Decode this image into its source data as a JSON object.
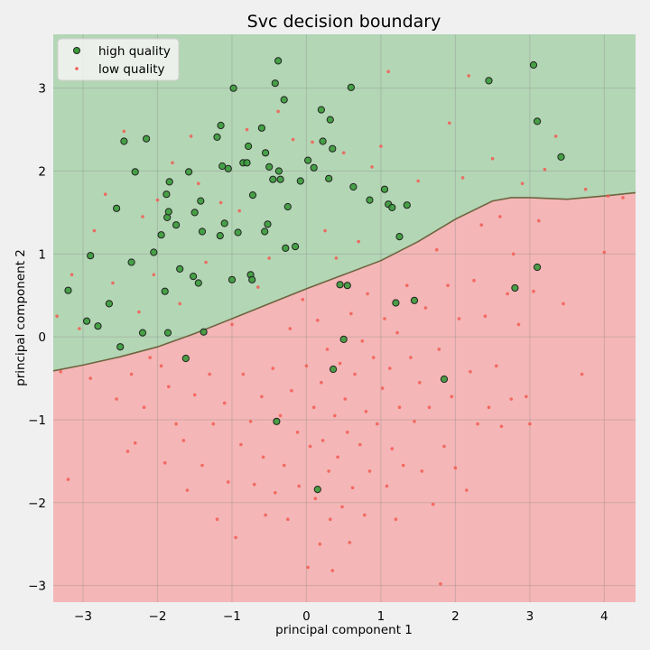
{
  "chart_data": {
    "type": "scatter",
    "title": "Svc decision boundary",
    "xlabel": "principal component 1",
    "ylabel": "principal component 2",
    "xlim": [
      -3.4,
      4.42
    ],
    "ylim": [
      -3.2,
      3.65
    ],
    "xticks": [
      -3,
      -2,
      -1,
      0,
      1,
      2,
      3,
      4
    ],
    "yticks": [
      -3,
      -2,
      -1,
      0,
      1,
      2,
      3
    ],
    "grid": true,
    "legend_position": "top-left",
    "region_colors": {
      "high": "#b3d6b5",
      "low": "#f4b6b6"
    },
    "boundary_color": "#6e6440",
    "boundary": [
      [
        -3.4,
        -0.41
      ],
      [
        -3.0,
        -0.34
      ],
      [
        -2.5,
        -0.24
      ],
      [
        -2.0,
        -0.12
      ],
      [
        -1.5,
        0.04
      ],
      [
        -1.0,
        0.22
      ],
      [
        -0.5,
        0.4
      ],
      [
        0.0,
        0.58
      ],
      [
        0.5,
        0.75
      ],
      [
        1.0,
        0.92
      ],
      [
        1.5,
        1.15
      ],
      [
        2.0,
        1.42
      ],
      [
        2.5,
        1.64
      ],
      [
        2.75,
        1.68
      ],
      [
        3.0,
        1.68
      ],
      [
        3.5,
        1.66
      ],
      [
        4.0,
        1.7
      ],
      [
        4.42,
        1.74
      ]
    ],
    "series": [
      {
        "name": "high quality",
        "color": "#3a9a3a",
        "edge": "#222222",
        "points": [
          [
            -3.2,
            0.56
          ],
          [
            -2.95,
            0.19
          ],
          [
            -2.9,
            0.98
          ],
          [
            -2.8,
            0.13
          ],
          [
            -2.65,
            0.4
          ],
          [
            -2.55,
            1.55
          ],
          [
            -2.5,
            -0.12
          ],
          [
            -2.45,
            2.36
          ],
          [
            -2.35,
            0.9
          ],
          [
            -2.3,
            1.99
          ],
          [
            -2.2,
            0.05
          ],
          [
            -2.15,
            2.39
          ],
          [
            -2.05,
            1.02
          ],
          [
            -1.95,
            1.23
          ],
          [
            -1.9,
            0.55
          ],
          [
            -1.88,
            1.72
          ],
          [
            -1.87,
            1.44
          ],
          [
            -1.86,
            0.05
          ],
          [
            -1.85,
            1.51
          ],
          [
            -1.84,
            1.87
          ],
          [
            -1.75,
            1.35
          ],
          [
            -1.7,
            0.82
          ],
          [
            -1.62,
            -0.26
          ],
          [
            -1.58,
            1.99
          ],
          [
            -1.52,
            0.73
          ],
          [
            -1.5,
            1.5
          ],
          [
            -1.45,
            0.65
          ],
          [
            -1.42,
            1.64
          ],
          [
            -1.4,
            1.27
          ],
          [
            -1.38,
            0.06
          ],
          [
            -1.2,
            2.41
          ],
          [
            -1.16,
            1.22
          ],
          [
            -1.15,
            2.55
          ],
          [
            -1.13,
            2.06
          ],
          [
            -1.1,
            1.37
          ],
          [
            -1.05,
            2.03
          ],
          [
            -1.0,
            0.69
          ],
          [
            -0.98,
            3.0
          ],
          [
            -0.92,
            1.26
          ],
          [
            -0.85,
            2.1
          ],
          [
            -0.8,
            2.1
          ],
          [
            -0.78,
            2.3
          ],
          [
            -0.75,
            0.75
          ],
          [
            -0.73,
            0.69
          ],
          [
            -0.72,
            1.71
          ],
          [
            -0.6,
            2.52
          ],
          [
            -0.56,
            1.27
          ],
          [
            -0.55,
            2.22
          ],
          [
            -0.52,
            1.36
          ],
          [
            -0.5,
            2.05
          ],
          [
            -0.45,
            1.9
          ],
          [
            -0.42,
            3.06
          ],
          [
            -0.4,
            -1.02
          ],
          [
            -0.38,
            3.33
          ],
          [
            -0.37,
            2.0
          ],
          [
            -0.35,
            1.9
          ],
          [
            -0.3,
            2.86
          ],
          [
            -0.28,
            1.07
          ],
          [
            -0.25,
            1.57
          ],
          [
            -0.15,
            1.09
          ],
          [
            -0.08,
            1.88
          ],
          [
            0.02,
            2.13
          ],
          [
            0.1,
            2.04
          ],
          [
            0.15,
            -1.84
          ],
          [
            0.2,
            2.74
          ],
          [
            0.22,
            2.36
          ],
          [
            0.3,
            1.91
          ],
          [
            0.32,
            2.62
          ],
          [
            0.35,
            2.27
          ],
          [
            0.36,
            -0.39
          ],
          [
            0.45,
            0.63
          ],
          [
            0.5,
            -0.03
          ],
          [
            0.55,
            0.62
          ],
          [
            0.6,
            3.01
          ],
          [
            0.63,
            1.81
          ],
          [
            0.85,
            1.65
          ],
          [
            1.05,
            1.78
          ],
          [
            1.1,
            1.6
          ],
          [
            1.15,
            1.56
          ],
          [
            1.2,
            0.41
          ],
          [
            1.25,
            1.21
          ],
          [
            1.35,
            1.59
          ],
          [
            1.45,
            0.44
          ],
          [
            1.85,
            -0.51
          ],
          [
            2.45,
            3.09
          ],
          [
            2.8,
            0.59
          ],
          [
            3.05,
            3.28
          ],
          [
            3.1,
            2.6
          ],
          [
            3.1,
            0.84
          ],
          [
            3.42,
            2.17
          ]
        ]
      },
      {
        "name": "low quality",
        "color": "#f25c54",
        "edge": "#f25c54",
        "points": [
          [
            -3.35,
            0.25
          ],
          [
            -3.3,
            -0.42
          ],
          [
            -3.2,
            -1.72
          ],
          [
            -3.15,
            0.75
          ],
          [
            -3.05,
            0.1
          ],
          [
            -2.9,
            -0.5
          ],
          [
            -2.85,
            1.28
          ],
          [
            -2.7,
            1.72
          ],
          [
            -2.6,
            0.65
          ],
          [
            -2.55,
            -0.75
          ],
          [
            -2.45,
            2.48
          ],
          [
            -2.4,
            -1.38
          ],
          [
            -2.35,
            -0.45
          ],
          [
            -2.3,
            -1.28
          ],
          [
            -2.25,
            0.3
          ],
          [
            -2.2,
            1.45
          ],
          [
            -2.18,
            -0.85
          ],
          [
            -2.1,
            -0.25
          ],
          [
            -2.05,
            0.75
          ],
          [
            -2.0,
            1.65
          ],
          [
            -1.95,
            -0.35
          ],
          [
            -1.9,
            -1.52
          ],
          [
            -1.85,
            -0.6
          ],
          [
            -1.8,
            2.1
          ],
          [
            -1.75,
            -1.05
          ],
          [
            -1.7,
            0.4
          ],
          [
            -1.65,
            -1.25
          ],
          [
            -1.6,
            -1.85
          ],
          [
            -1.55,
            2.42
          ],
          [
            -1.5,
            -0.7
          ],
          [
            -1.45,
            1.85
          ],
          [
            -1.4,
            -1.55
          ],
          [
            -1.35,
            0.9
          ],
          [
            -1.3,
            -0.45
          ],
          [
            -1.25,
            -1.05
          ],
          [
            -1.2,
            -2.2
          ],
          [
            -1.15,
            1.62
          ],
          [
            -1.1,
            -0.8
          ],
          [
            -1.05,
            -1.75
          ],
          [
            -1.0,
            0.15
          ],
          [
            -0.95,
            -2.42
          ],
          [
            -0.9,
            1.52
          ],
          [
            -0.88,
            -1.3
          ],
          [
            -0.85,
            -0.45
          ],
          [
            -0.8,
            2.5
          ],
          [
            -0.75,
            -1.02
          ],
          [
            -0.7,
            -1.78
          ],
          [
            -0.65,
            0.6
          ],
          [
            -0.6,
            -0.72
          ],
          [
            -0.58,
            -1.45
          ],
          [
            -0.55,
            -2.15
          ],
          [
            -0.5,
            0.95
          ],
          [
            -0.45,
            -0.38
          ],
          [
            -0.42,
            -1.88
          ],
          [
            -0.38,
            2.72
          ],
          [
            -0.35,
            -0.95
          ],
          [
            -0.3,
            -1.55
          ],
          [
            -0.25,
            -2.2
          ],
          [
            -0.22,
            0.1
          ],
          [
            -0.2,
            -0.65
          ],
          [
            -0.18,
            2.38
          ],
          [
            -0.12,
            -1.15
          ],
          [
            -0.1,
            -1.8
          ],
          [
            -0.05,
            0.45
          ],
          [
            0.0,
            -0.35
          ],
          [
            0.02,
            -2.78
          ],
          [
            0.05,
            -1.32
          ],
          [
            0.08,
            2.35
          ],
          [
            0.1,
            -0.85
          ],
          [
            0.12,
            -1.95
          ],
          [
            0.15,
            0.2
          ],
          [
            0.18,
            -2.5
          ],
          [
            0.2,
            -0.55
          ],
          [
            0.22,
            -1.25
          ],
          [
            0.25,
            1.28
          ],
          [
            0.28,
            -0.15
          ],
          [
            0.3,
            -1.62
          ],
          [
            0.32,
            -2.2
          ],
          [
            0.35,
            -2.82
          ],
          [
            0.38,
            -0.95
          ],
          [
            0.4,
            0.95
          ],
          [
            0.42,
            -1.45
          ],
          [
            0.45,
            -0.32
          ],
          [
            0.48,
            -2.05
          ],
          [
            0.5,
            2.22
          ],
          [
            0.52,
            -0.75
          ],
          [
            0.55,
            -1.15
          ],
          [
            0.58,
            -2.48
          ],
          [
            0.6,
            0.28
          ],
          [
            0.62,
            -1.82
          ],
          [
            0.65,
            -0.45
          ],
          [
            0.7,
            1.15
          ],
          [
            0.72,
            -1.3
          ],
          [
            0.75,
            -0.05
          ],
          [
            0.78,
            -2.15
          ],
          [
            0.8,
            -0.9
          ],
          [
            0.82,
            0.52
          ],
          [
            0.85,
            -1.62
          ],
          [
            0.88,
            2.05
          ],
          [
            0.9,
            -0.25
          ],
          [
            0.95,
            -1.05
          ],
          [
            1.0,
            2.3
          ],
          [
            1.02,
            -0.62
          ],
          [
            1.05,
            0.22
          ],
          [
            1.08,
            -1.8
          ],
          [
            1.1,
            3.2
          ],
          [
            1.12,
            -0.38
          ],
          [
            1.15,
            -1.35
          ],
          [
            1.2,
            -2.2
          ],
          [
            1.22,
            0.05
          ],
          [
            1.25,
            -0.85
          ],
          [
            1.3,
            -1.55
          ],
          [
            1.35,
            0.62
          ],
          [
            1.4,
            -0.25
          ],
          [
            1.45,
            -1.02
          ],
          [
            1.5,
            1.88
          ],
          [
            1.52,
            -0.55
          ],
          [
            1.55,
            -1.62
          ],
          [
            1.6,
            0.35
          ],
          [
            1.65,
            -0.85
          ],
          [
            1.7,
            -2.02
          ],
          [
            1.75,
            1.05
          ],
          [
            1.78,
            -0.15
          ],
          [
            1.8,
            -2.98
          ],
          [
            1.85,
            -1.32
          ],
          [
            1.9,
            0.62
          ],
          [
            1.92,
            2.58
          ],
          [
            1.95,
            -0.72
          ],
          [
            2.0,
            -1.58
          ],
          [
            2.05,
            0.22
          ],
          [
            2.1,
            1.92
          ],
          [
            2.15,
            -1.85
          ],
          [
            2.18,
            3.15
          ],
          [
            2.2,
            -0.42
          ],
          [
            2.25,
            0.68
          ],
          [
            2.3,
            -1.05
          ],
          [
            2.35,
            1.35
          ],
          [
            2.4,
            0.25
          ],
          [
            2.45,
            -0.85
          ],
          [
            2.5,
            2.15
          ],
          [
            2.55,
            -0.35
          ],
          [
            2.6,
            1.45
          ],
          [
            2.62,
            -1.08
          ],
          [
            2.7,
            0.52
          ],
          [
            2.75,
            -0.75
          ],
          [
            2.78,
            1.0
          ],
          [
            2.85,
            0.15
          ],
          [
            2.9,
            1.85
          ],
          [
            2.95,
            -0.72
          ],
          [
            3.0,
            -1.05
          ],
          [
            3.05,
            0.55
          ],
          [
            3.12,
            1.4
          ],
          [
            3.2,
            2.02
          ],
          [
            3.35,
            2.42
          ],
          [
            3.45,
            0.4
          ],
          [
            3.7,
            -0.45
          ],
          [
            3.75,
            1.78
          ],
          [
            4.0,
            1.02
          ],
          [
            4.05,
            1.7
          ],
          [
            4.25,
            1.68
          ]
        ]
      }
    ]
  }
}
